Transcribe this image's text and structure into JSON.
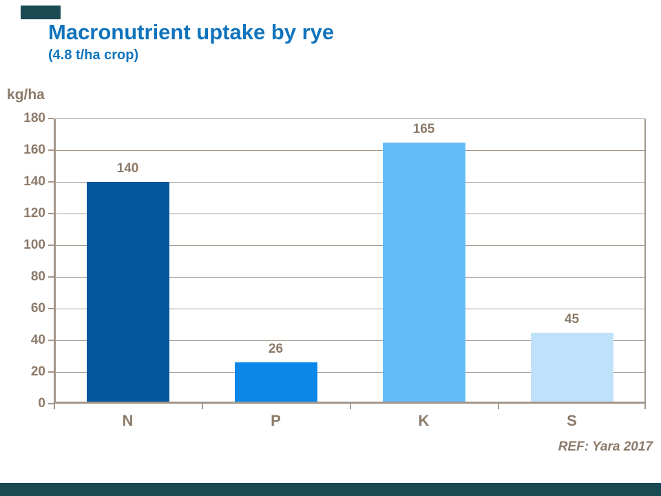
{
  "slide": {
    "title": "Macronutrient uptake by rye",
    "subtitle": "(4.8 t/ha crop)",
    "reference": "REF: Yara 2017",
    "accent_color": "#1A4A52",
    "title_color": "#1173BC",
    "label_color": "#8C7A69",
    "axis_color": "#A3968A"
  },
  "chart_data": {
    "type": "bar",
    "title": "Macronutrient uptake by rye (4.8 t/ha crop)",
    "ylabel": "kg/ha",
    "xlabel": "",
    "categories": [
      "N",
      "P",
      "K",
      "S"
    ],
    "values": [
      140,
      26,
      165,
      45
    ],
    "value_labels": [
      "140",
      "26",
      "165",
      "45"
    ],
    "bar_colors": [
      "#05579E",
      "#0A87E8",
      "#66BCF9",
      "#C0E1FA"
    ],
    "ylim": [
      0,
      180
    ],
    "ytick_step": 20,
    "ytick_labels": [
      "0",
      "20",
      "40",
      "60",
      "80",
      "100",
      "120",
      "140",
      "160",
      "180"
    ],
    "grid": true,
    "legend": "none"
  }
}
